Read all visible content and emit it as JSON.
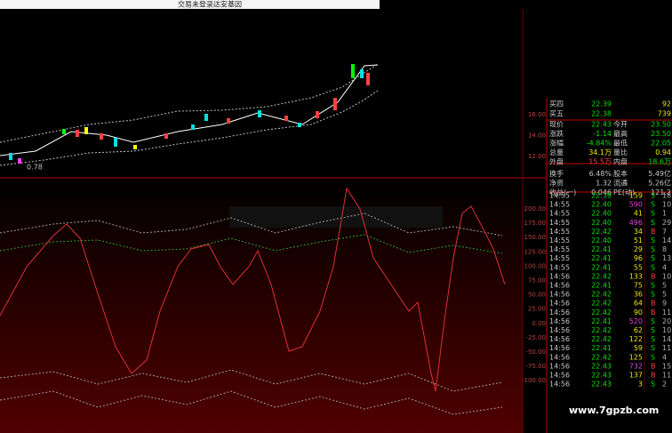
{
  "title_bar": {
    "account": "交易未登录",
    "stock": "达安基因"
  },
  "price_axis": [
    "16.00",
    "14.00",
    "12.00"
  ],
  "price_annotation": "0.78",
  "indicator_axis": [
    "200.00",
    "175.00",
    "150.00",
    "125.00",
    "100.00",
    "75.00",
    "50.00",
    "25.00",
    "0.00",
    "-25.00",
    "-50.00",
    "-75.00",
    "-100.00"
  ],
  "quote": {
    "bids": [
      {
        "label": "买四",
        "price": "22.39",
        "volume": "92"
      },
      {
        "label": "买五",
        "price": "22.38",
        "volume": "739"
      }
    ],
    "stats": [
      {
        "label": "现价",
        "value": "22.43",
        "label2": "今开",
        "value2": "23.50"
      },
      {
        "label": "涨跌",
        "value": "-1.14",
        "label2": "最高",
        "value2": "23.50"
      },
      {
        "label": "涨幅",
        "value": "-4.84%",
        "label2": "最低",
        "value2": "22.05"
      },
      {
        "label": "总量",
        "value": "34.1万",
        "label2": "量比",
        "value2": "0.94"
      },
      {
        "label": "外盘",
        "value": "15.5万",
        "label2": "内盘",
        "value2": "18.6万"
      },
      {
        "label": "换手",
        "value": "6.48%",
        "label2": "股本",
        "value2": "5.49亿"
      },
      {
        "label": "净资",
        "value": "1.32",
        "label2": "流通",
        "value2": "5.26亿"
      },
      {
        "label": "收益(一)",
        "value": "0.046",
        "label2": "PE(动)",
        "value2": "121.2"
      }
    ]
  },
  "trades": [
    [
      "14:55",
      "22.39",
      "159",
      "S",
      "18"
    ],
    [
      "14:55",
      "22.40",
      "590",
      "S",
      "10"
    ],
    [
      "14:55",
      "22.40",
      "41",
      "S",
      "1"
    ],
    [
      "14:55",
      "22.40",
      "496",
      "S",
      "29"
    ],
    [
      "14:55",
      "22.42",
      "34",
      "B",
      "7"
    ],
    [
      "14:55",
      "22.40",
      "51",
      "S",
      "14"
    ],
    [
      "14:55",
      "22.41",
      "29",
      "S",
      "8"
    ],
    [
      "14:55",
      "22.41",
      "96",
      "S",
      "13"
    ],
    [
      "14:55",
      "22.41",
      "55",
      "S",
      "4"
    ],
    [
      "14:56",
      "22.42",
      "133",
      "B",
      "10"
    ],
    [
      "14:56",
      "22.41",
      "75",
      "S",
      "5"
    ],
    [
      "14:56",
      "22.42",
      "36",
      "S",
      "5"
    ],
    [
      "14:56",
      "22.42",
      "64",
      "B",
      "9"
    ],
    [
      "14:56",
      "22.42",
      "90",
      "B",
      "11"
    ],
    [
      "14:56",
      "22.41",
      "520",
      "S",
      "20"
    ],
    [
      "14:56",
      "22.42",
      "62",
      "S",
      "10"
    ],
    [
      "14:56",
      "22.42",
      "122",
      "S",
      "14"
    ],
    [
      "14:56",
      "22.41",
      "59",
      "S",
      "11"
    ],
    [
      "14:56",
      "22.42",
      "125",
      "S",
      "4"
    ],
    [
      "14:56",
      "22.43",
      "732",
      "B",
      "15"
    ],
    [
      "14:56",
      "22.43",
      "137",
      "B",
      "11"
    ],
    [
      "14:56",
      "22.43",
      "3",
      "S",
      "2"
    ]
  ],
  "watermark": "www.7gpzb.com"
}
